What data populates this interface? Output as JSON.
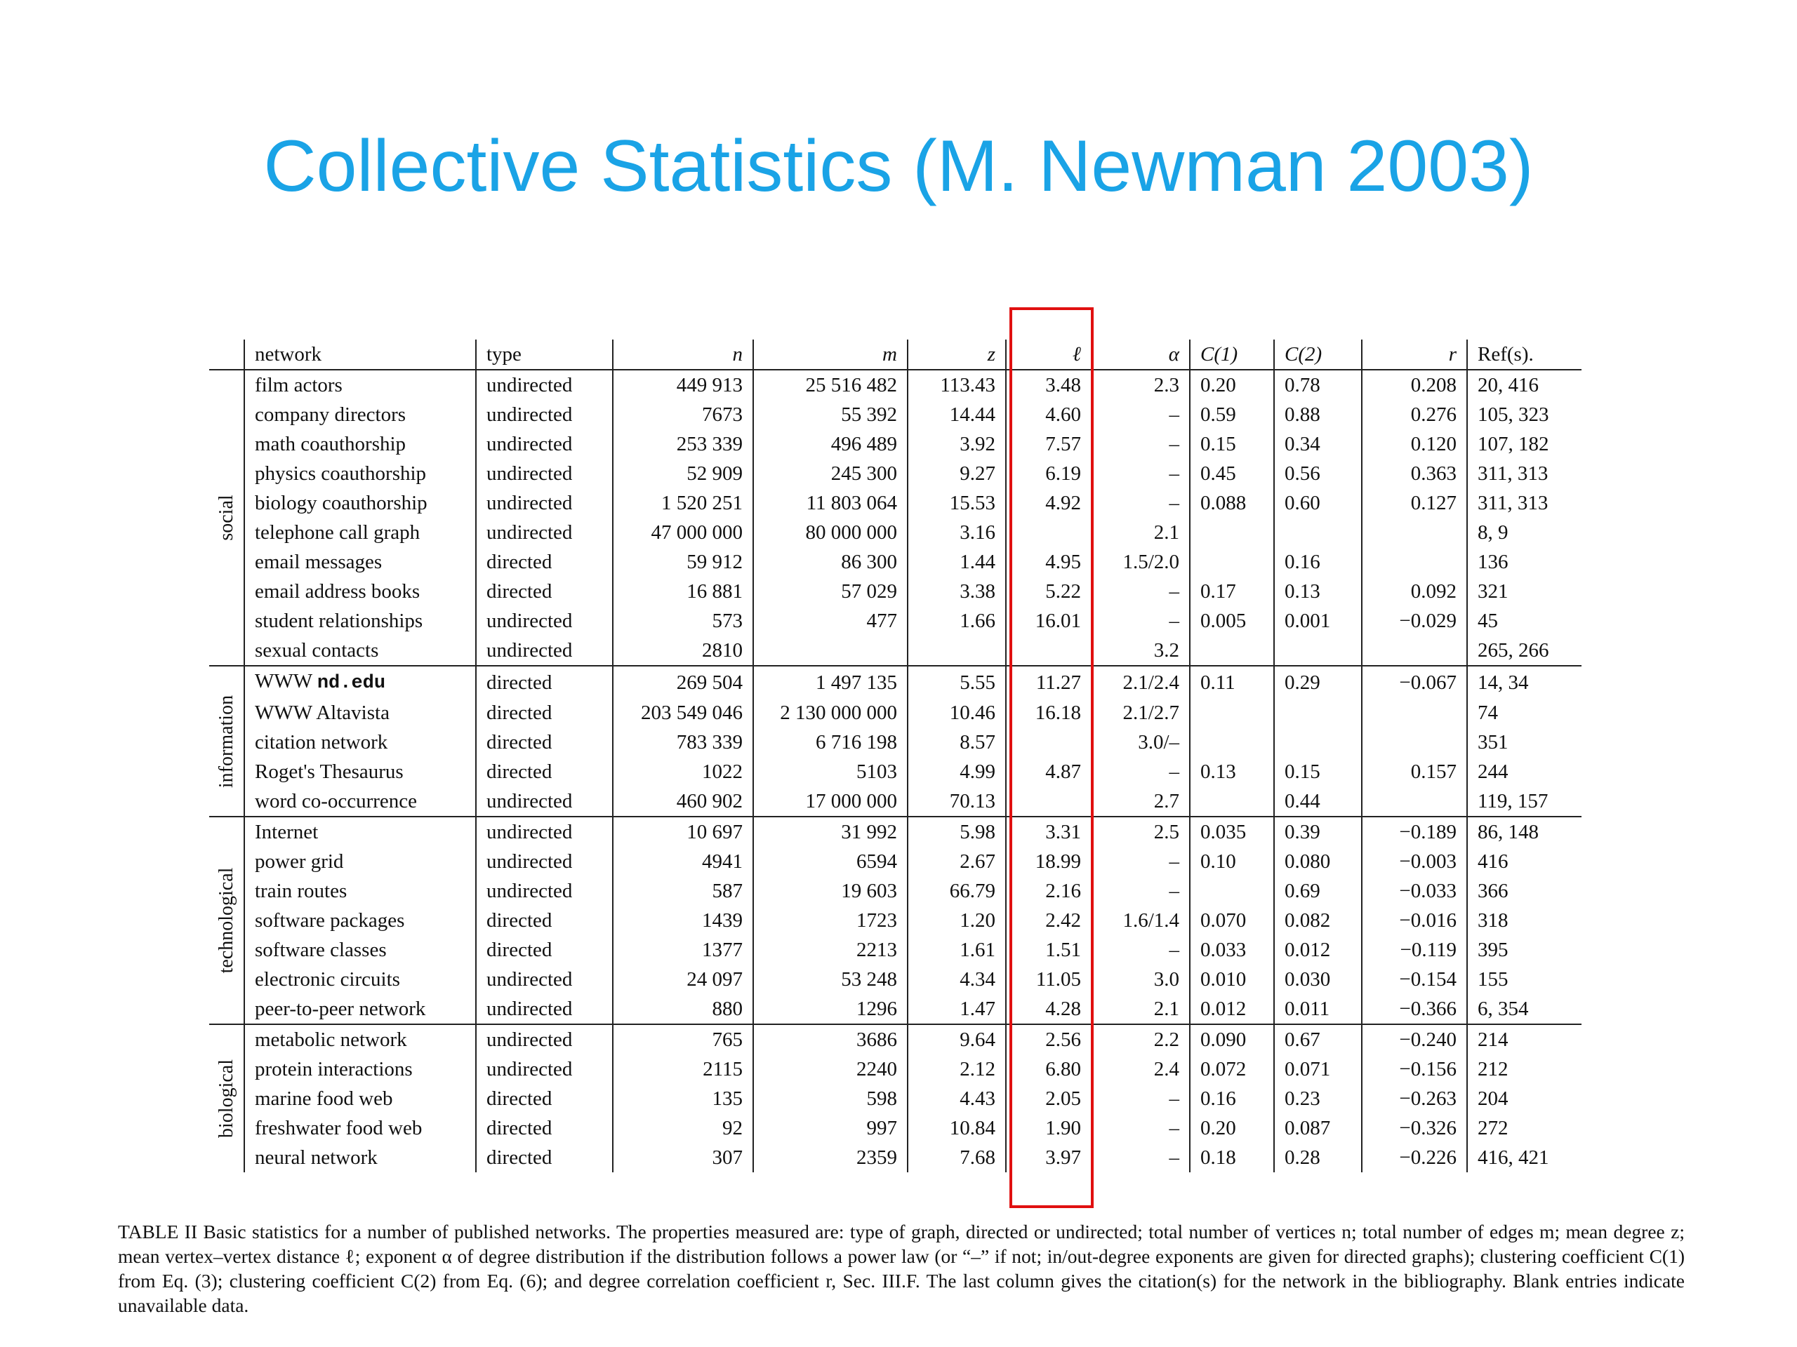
{
  "slide": {
    "title": "Collective Statistics (M. Newman 2003)"
  },
  "table": {
    "headers": [
      "network",
      "type",
      "n",
      "m",
      "z",
      "ℓ",
      "α",
      "C(1)",
      "C(2)",
      "r",
      "Ref(s)."
    ],
    "groups": [
      {
        "label": "social",
        "rows": [
          [
            "film actors",
            "undirected",
            "449 913",
            "25 516 482",
            "113.43",
            "3.48",
            "2.3",
            "0.20",
            "0.78",
            "0.208",
            "20, 416"
          ],
          [
            "company directors",
            "undirected",
            "7673",
            "55 392",
            "14.44",
            "4.60",
            "–",
            "0.59",
            "0.88",
            "0.276",
            "105, 323"
          ],
          [
            "math coauthorship",
            "undirected",
            "253 339",
            "496 489",
            "3.92",
            "7.57",
            "–",
            "0.15",
            "0.34",
            "0.120",
            "107, 182"
          ],
          [
            "physics coauthorship",
            "undirected",
            "52 909",
            "245 300",
            "9.27",
            "6.19",
            "–",
            "0.45",
            "0.56",
            "0.363",
            "311, 313"
          ],
          [
            "biology coauthorship",
            "undirected",
            "1 520 251",
            "11 803 064",
            "15.53",
            "4.92",
            "–",
            "0.088",
            "0.60",
            "0.127",
            "311, 313"
          ],
          [
            "telephone call graph",
            "undirected",
            "47 000 000",
            "80 000 000",
            "3.16",
            "",
            "2.1",
            "",
            "",
            "",
            "8, 9"
          ],
          [
            "email messages",
            "directed",
            "59 912",
            "86 300",
            "1.44",
            "4.95",
            "1.5/2.0",
            "",
            "0.16",
            "",
            "136"
          ],
          [
            "email address books",
            "directed",
            "16 881",
            "57 029",
            "3.38",
            "5.22",
            "–",
            "0.17",
            "0.13",
            "0.092",
            "321"
          ],
          [
            "student relationships",
            "undirected",
            "573",
            "477",
            "1.66",
            "16.01",
            "–",
            "0.005",
            "0.001",
            "−0.029",
            "45"
          ],
          [
            "sexual contacts",
            "undirected",
            "2810",
            "",
            "",
            "",
            "3.2",
            "",
            "",
            "",
            "265, 266"
          ]
        ]
      },
      {
        "label": "information",
        "rows": [
          [
            "WWW nd.edu",
            "directed",
            "269 504",
            "1 497 135",
            "5.55",
            "11.27",
            "2.1/2.4",
            "0.11",
            "0.29",
            "−0.067",
            "14, 34"
          ],
          [
            "WWW Altavista",
            "directed",
            "203 549 046",
            "2 130 000 000",
            "10.46",
            "16.18",
            "2.1/2.7",
            "",
            "",
            "",
            "74"
          ],
          [
            "citation network",
            "directed",
            "783 339",
            "6 716 198",
            "8.57",
            "",
            "3.0/–",
            "",
            "",
            "",
            "351"
          ],
          [
            "Roget's Thesaurus",
            "directed",
            "1022",
            "5103",
            "4.99",
            "4.87",
            "–",
            "0.13",
            "0.15",
            "0.157",
            "244"
          ],
          [
            "word co-occurrence",
            "undirected",
            "460 902",
            "17 000 000",
            "70.13",
            "",
            "2.7",
            "",
            "0.44",
            "",
            "119, 157"
          ]
        ]
      },
      {
        "label": "technological",
        "rows": [
          [
            "Internet",
            "undirected",
            "10 697",
            "31 992",
            "5.98",
            "3.31",
            "2.5",
            "0.035",
            "0.39",
            "−0.189",
            "86, 148"
          ],
          [
            "power grid",
            "undirected",
            "4941",
            "6594",
            "2.67",
            "18.99",
            "–",
            "0.10",
            "0.080",
            "−0.003",
            "416"
          ],
          [
            "train routes",
            "undirected",
            "587",
            "19 603",
            "66.79",
            "2.16",
            "–",
            "",
            "0.69",
            "−0.033",
            "366"
          ],
          [
            "software packages",
            "directed",
            "1439",
            "1723",
            "1.20",
            "2.42",
            "1.6/1.4",
            "0.070",
            "0.082",
            "−0.016",
            "318"
          ],
          [
            "software classes",
            "directed",
            "1377",
            "2213",
            "1.61",
            "1.51",
            "–",
            "0.033",
            "0.012",
            "−0.119",
            "395"
          ],
          [
            "electronic circuits",
            "undirected",
            "24 097",
            "53 248",
            "4.34",
            "11.05",
            "3.0",
            "0.010",
            "0.030",
            "−0.154",
            "155"
          ],
          [
            "peer-to-peer network",
            "undirected",
            "880",
            "1296",
            "1.47",
            "4.28",
            "2.1",
            "0.012",
            "0.011",
            "−0.366",
            "6, 354"
          ]
        ]
      },
      {
        "label": "biological",
        "rows": [
          [
            "metabolic network",
            "undirected",
            "765",
            "3686",
            "9.64",
            "2.56",
            "2.2",
            "0.090",
            "0.67",
            "−0.240",
            "214"
          ],
          [
            "protein interactions",
            "undirected",
            "2115",
            "2240",
            "2.12",
            "6.80",
            "2.4",
            "0.072",
            "0.071",
            "−0.156",
            "212"
          ],
          [
            "marine food web",
            "directed",
            "135",
            "598",
            "4.43",
            "2.05",
            "–",
            "0.16",
            "0.23",
            "−0.263",
            "204"
          ],
          [
            "freshwater food web",
            "directed",
            "92",
            "997",
            "10.84",
            "1.90",
            "–",
            "0.20",
            "0.087",
            "−0.326",
            "272"
          ],
          [
            "neural network",
            "directed",
            "307",
            "2359",
            "7.68",
            "3.97",
            "–",
            "0.18",
            "0.28",
            "−0.226",
            "416, 421"
          ]
        ]
      }
    ]
  },
  "highlight_column": "ℓ",
  "highlight_color": "#e01010",
  "title_color": "#1aa3e6",
  "caption": "TABLE II Basic statistics for a number of published networks. The properties measured are: type of graph, directed or undirected; total number of vertices n; total number of edges m; mean degree z; mean vertex–vertex distance ℓ; exponent α of degree distribution if the distribution follows a power law (or “–” if not; in/out-degree exponents are given for directed graphs); clustering coefficient C(1) from Eq. (3); clustering coefficient C(2) from Eq. (6); and degree correlation coefficient r, Sec. III.F. The last column gives the citation(s) for the network in the bibliography. Blank entries indicate unavailable data."
}
